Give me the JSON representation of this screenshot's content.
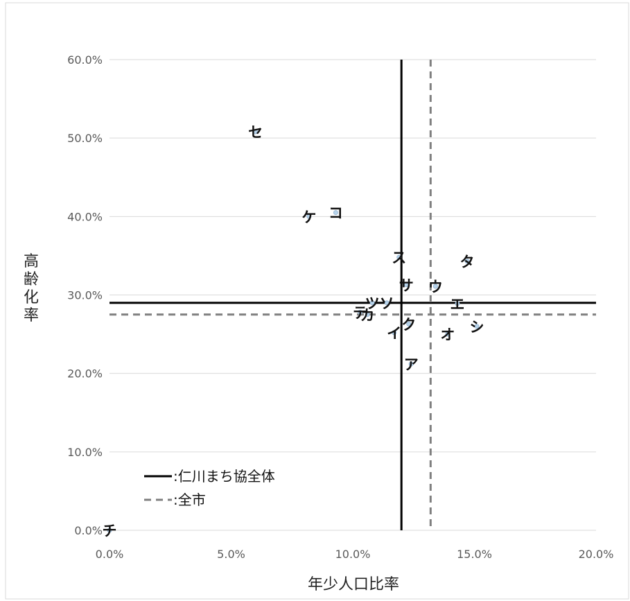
{
  "chart_data": {
    "type": "scatter",
    "xlabel": "年少人口比率",
    "ylabel": "高齢化率",
    "xlim": [
      0,
      0.2
    ],
    "ylim": [
      0,
      0.6
    ],
    "x_ticks": [
      "0.0%",
      "5.0%",
      "10.0%",
      "15.0%",
      "20.0%"
    ],
    "y_ticks": [
      "0.0%",
      "10.0%",
      "20.0%",
      "30.0%",
      "40.0%",
      "50.0%",
      "60.0%"
    ],
    "grid": "horizontal",
    "points": [
      {
        "label": "ア",
        "x": 0.124,
        "y": 0.212
      },
      {
        "label": "イ",
        "x": 0.117,
        "y": 0.252
      },
      {
        "label": "ウ",
        "x": 0.134,
        "y": 0.311
      },
      {
        "label": "エ",
        "x": 0.143,
        "y": 0.289
      },
      {
        "label": "オ",
        "x": 0.139,
        "y": 0.25
      },
      {
        "label": "カ",
        "x": 0.106,
        "y": 0.275
      },
      {
        "label": "ク",
        "x": 0.123,
        "y": 0.263
      },
      {
        "label": "ケ",
        "x": 0.082,
        "y": 0.4
      },
      {
        "label": "コ",
        "x": 0.093,
        "y": 0.405
      },
      {
        "label": "サ",
        "x": 0.122,
        "y": 0.313
      },
      {
        "label": "シ",
        "x": 0.151,
        "y": 0.26
      },
      {
        "label": "ス",
        "x": 0.119,
        "y": 0.348
      },
      {
        "label": "セ",
        "x": 0.06,
        "y": 0.508
      },
      {
        "label": "ソ",
        "x": 0.114,
        "y": 0.29
      },
      {
        "label": "タ",
        "x": 0.147,
        "y": 0.343
      },
      {
        "label": "チ",
        "x": 0.0,
        "y": 0.0
      },
      {
        "label": "ツ",
        "x": 0.108,
        "y": 0.29
      },
      {
        "label": "テ",
        "x": 0.103,
        "y": 0.278
      }
    ],
    "reference_lines": [
      {
        "name": ":仁川まち協全体",
        "style": "solid",
        "color": "#000000",
        "x": 0.12,
        "y": 0.29
      },
      {
        "name": ":全市",
        "style": "dashed",
        "color": "#7f7f7f",
        "x": 0.132,
        "y": 0.275
      }
    ],
    "legend": {
      "placement": "bottom-left"
    }
  }
}
